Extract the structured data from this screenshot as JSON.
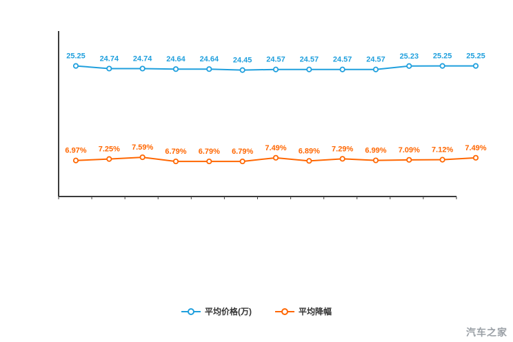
{
  "chart_data": {
    "type": "line",
    "title": "",
    "xlabel": "",
    "ylabel": "",
    "ylim": [
      0,
      32
    ],
    "grid": false,
    "legend_position": "bottom",
    "x_axis_tick_labels": [],
    "series": [
      {
        "name": "平均价格(万)",
        "color": "#1f9fdd",
        "suffix": "",
        "values": [
          25.25,
          24.74,
          24.74,
          24.64,
          24.64,
          24.45,
          24.57,
          24.57,
          24.57,
          24.57,
          25.23,
          25.25,
          25.25
        ]
      },
      {
        "name": "平均降幅",
        "color": "#ff6600",
        "suffix": "%",
        "values": [
          6.97,
          7.25,
          7.59,
          6.79,
          6.79,
          6.79,
          7.49,
          6.89,
          7.29,
          6.99,
          7.09,
          7.12,
          7.49
        ]
      }
    ]
  },
  "legend": {
    "items": [
      {
        "label": "平均价格(万)",
        "color": "#1f9fdd"
      },
      {
        "label": "平均降幅",
        "color": "#ff6600"
      }
    ]
  },
  "watermark": "汽车之家",
  "axis_color": "#3a3a3a"
}
